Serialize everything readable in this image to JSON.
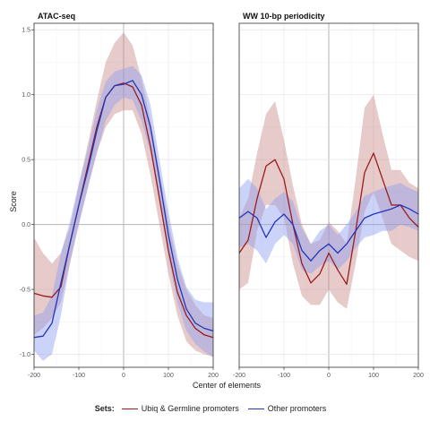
{
  "legend": {
    "title": "Sets:",
    "entries": [
      "Ubiq & Germline promoters",
      "Other promoters"
    ]
  },
  "colors": {
    "series1": "#9b1c1c",
    "series1_fill": "#c98a8a",
    "series2": "#2236b8",
    "series2_fill": "#8f9ef0",
    "grid": "#e4e4e4",
    "zero_line": "#b5b5b5"
  },
  "chart_data": [
    {
      "type": "line",
      "title": "ATAC-seq",
      "xlabel": "Center of elements",
      "ylabel": "Score",
      "xlim": [
        -200,
        200
      ],
      "ylim": [
        -1.1,
        1.55
      ],
      "x_ticks": [
        -200,
        -100,
        0,
        100,
        200
      ],
      "x_tick_labels": [
        "-200",
        "-100",
        "0",
        "100",
        "200"
      ],
      "y_ticks": [
        -1.0,
        -0.5,
        0.0,
        0.5,
        1.0,
        1.5
      ],
      "y_tick_labels": [
        "-1.0",
        "-0.5",
        "0.0",
        "0.5",
        "1.0",
        "1.5"
      ],
      "grid": true,
      "x": [
        -200,
        -180,
        -160,
        -140,
        -120,
        -100,
        -80,
        -60,
        -40,
        -20,
        0,
        20,
        40,
        60,
        80,
        100,
        120,
        140,
        160,
        180,
        200
      ],
      "series": [
        {
          "name": "Ubiq & Germline promoters",
          "values": [
            -0.53,
            -0.55,
            -0.56,
            -0.48,
            -0.15,
            0.15,
            0.45,
            0.75,
            0.98,
            1.07,
            1.09,
            1.06,
            0.92,
            0.6,
            0.2,
            -0.2,
            -0.52,
            -0.7,
            -0.8,
            -0.85,
            -0.87
          ],
          "lower": [
            -0.85,
            -0.8,
            -0.72,
            -0.6,
            -0.3,
            0.0,
            0.28,
            0.55,
            0.75,
            0.85,
            0.88,
            0.88,
            0.7,
            0.38,
            0.0,
            -0.38,
            -0.7,
            -0.9,
            -0.97,
            -1.0,
            -1.02
          ],
          "upper": [
            -0.1,
            -0.22,
            -0.3,
            -0.22,
            -0.02,
            0.3,
            0.62,
            0.95,
            1.25,
            1.4,
            1.48,
            1.38,
            1.12,
            0.8,
            0.4,
            0.02,
            -0.3,
            -0.5,
            -0.62,
            -0.7,
            -0.72
          ]
        },
        {
          "name": "Other promoters",
          "values": [
            -0.87,
            -0.86,
            -0.76,
            -0.45,
            -0.15,
            0.15,
            0.42,
            0.72,
            0.98,
            1.07,
            1.08,
            1.11,
            1.0,
            0.75,
            0.35,
            -0.08,
            -0.42,
            -0.65,
            -0.76,
            -0.8,
            -0.82
          ],
          "lower": [
            -0.97,
            -1.05,
            -1.0,
            -0.7,
            -0.3,
            0.0,
            0.28,
            0.55,
            0.8,
            0.92,
            0.98,
            0.96,
            0.8,
            0.55,
            0.18,
            -0.25,
            -0.6,
            -0.82,
            -0.92,
            -0.98,
            -1.02
          ],
          "upper": [
            -0.7,
            -0.68,
            -0.55,
            -0.22,
            0.02,
            0.32,
            0.58,
            0.88,
            1.1,
            1.18,
            1.2,
            1.22,
            1.15,
            0.92,
            0.5,
            0.1,
            -0.25,
            -0.48,
            -0.58,
            -0.6,
            -0.6
          ]
        }
      ]
    },
    {
      "type": "line",
      "title": "WW 10-bp periodicity",
      "xlabel": "Center of elements",
      "xlim": [
        -200,
        200
      ],
      "ylim": [
        -1.1,
        1.55
      ],
      "x_ticks": [
        -200,
        -100,
        0,
        100,
        200
      ],
      "x_tick_labels": [
        "-200",
        "-100",
        "0",
        "100",
        "200"
      ],
      "y_ticks": [
        -1.0,
        -0.5,
        0.0,
        0.5,
        1.0,
        1.5
      ],
      "grid": true,
      "x": [
        -200,
        -180,
        -160,
        -140,
        -120,
        -100,
        -80,
        -60,
        -40,
        -20,
        0,
        20,
        40,
        60,
        80,
        100,
        120,
        140,
        160,
        180,
        200
      ],
      "series": [
        {
          "name": "Ubiq & Germline promoters",
          "values": [
            -0.22,
            -0.12,
            0.2,
            0.45,
            0.5,
            0.35,
            0.0,
            -0.3,
            -0.45,
            -0.38,
            -0.22,
            -0.35,
            -0.46,
            -0.05,
            0.4,
            0.55,
            0.35,
            0.15,
            0.15,
            0.05,
            -0.02
          ],
          "lower": [
            -0.5,
            -0.45,
            -0.05,
            0.15,
            0.15,
            0.05,
            -0.3,
            -0.55,
            -0.62,
            -0.62,
            -0.5,
            -0.6,
            -0.65,
            -0.3,
            0.1,
            0.25,
            0.05,
            -0.15,
            -0.2,
            -0.25,
            -0.28
          ],
          "upper": [
            0.05,
            0.2,
            0.55,
            0.85,
            0.95,
            0.65,
            0.3,
            0.0,
            -0.15,
            -0.12,
            0.02,
            -0.05,
            -0.15,
            0.35,
            0.9,
            1.0,
            0.7,
            0.42,
            0.42,
            0.32,
            0.28
          ]
        },
        {
          "name": "Other promoters",
          "values": [
            0.05,
            0.1,
            0.05,
            -0.1,
            0.02,
            0.08,
            0.0,
            -0.2,
            -0.28,
            -0.2,
            -0.15,
            -0.22,
            -0.15,
            -0.05,
            0.05,
            0.08,
            0.1,
            0.12,
            0.15,
            0.12,
            0.08
          ],
          "lower": [
            -0.18,
            -0.15,
            -0.2,
            -0.3,
            -0.15,
            -0.08,
            -0.15,
            -0.35,
            -0.38,
            -0.32,
            -0.28,
            -0.35,
            -0.28,
            -0.18,
            -0.1,
            -0.08,
            -0.05,
            -0.05,
            0.0,
            -0.02,
            -0.05
          ],
          "upper": [
            0.28,
            0.35,
            0.28,
            0.12,
            0.2,
            0.25,
            0.18,
            -0.03,
            -0.15,
            -0.05,
            0.0,
            -0.08,
            0.0,
            0.1,
            0.22,
            0.25,
            0.28,
            0.3,
            0.32,
            0.28,
            0.25
          ]
        }
      ]
    }
  ]
}
